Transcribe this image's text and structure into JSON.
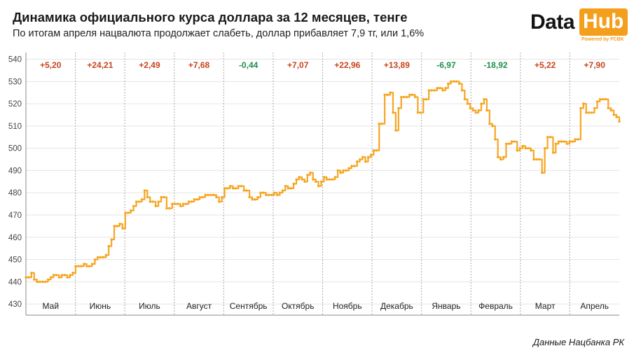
{
  "header": {
    "title": "Динамика официального курса доллара за 12 месяцев, тенге",
    "subtitle": "По итогам апреля нацвалюта продолжает слабеть, доллар прибавляет 7,9 тг, или 1,6%"
  },
  "logo": {
    "word1": "Data",
    "word2": "Hub",
    "tagline": "Powered by FCBK"
  },
  "source": "Данные Нацбанка РК",
  "colors": {
    "line": "#f5a623",
    "positive": "#c8441b",
    "negative": "#1f8f4e",
    "grid": "#e5e5e5",
    "separator": "#aaaaaa"
  },
  "chart_data": {
    "type": "line",
    "title": "Динамика официального курса доллара за 12 месяцев, тенге",
    "xlabel": "",
    "ylabel": "",
    "ylim": [
      425,
      543
    ],
    "yticks": [
      430,
      440,
      450,
      460,
      470,
      480,
      490,
      500,
      510,
      520,
      530,
      540
    ],
    "grid": "horizontal",
    "months": [
      "Май",
      "Июнь",
      "Июль",
      "Август",
      "Сентябрь",
      "Октябрь",
      "Ноябрь",
      "Декабрь",
      "Январь",
      "Февраль",
      "Март",
      "Апрель"
    ],
    "month_changes": [
      "+5,20",
      "+24,21",
      "+2,49",
      "+7,68",
      "-0,44",
      "+7,07",
      "+22,96",
      "+13,89",
      "-6,97",
      "-18,92",
      "+5,22",
      "+7,90"
    ],
    "series": [
      {
        "values": [
          442,
          442,
          444,
          441,
          440,
          440,
          440,
          440,
          441,
          442,
          443,
          443,
          442,
          443,
          443,
          442,
          443,
          444,
          447,
          447,
          447,
          448,
          447,
          447,
          448,
          450,
          451,
          451,
          451,
          452,
          456,
          459,
          465,
          465,
          466,
          464,
          471,
          471,
          472,
          474,
          476,
          476,
          477,
          481,
          478,
          476,
          476,
          474,
          476,
          478,
          478,
          473,
          473,
          475,
          475,
          475,
          474,
          475,
          475,
          476,
          476,
          477,
          477,
          478,
          478,
          479,
          479,
          479,
          479,
          478,
          476,
          478,
          482,
          482,
          483,
          482,
          482,
          483,
          483,
          481,
          481,
          478,
          477,
          477,
          478,
          480,
          480,
          479,
          479,
          479,
          480,
          479,
          480,
          481,
          483,
          482,
          482,
          484,
          486,
          487,
          486,
          485,
          488,
          489,
          486,
          485,
          483,
          485,
          487,
          486,
          486,
          486,
          487,
          490,
          489,
          490,
          490,
          491,
          492,
          492,
          494,
          495,
          496,
          494,
          496,
          497,
          499,
          499,
          511,
          511,
          524,
          524,
          525,
          516,
          508,
          518,
          523,
          523,
          523,
          524,
          524,
          523,
          516,
          516,
          522,
          522,
          526,
          526,
          526,
          527,
          527,
          526,
          527,
          529,
          530,
          530,
          530,
          529,
          526,
          522,
          520,
          518,
          517,
          516,
          517,
          520,
          522,
          517,
          511,
          510,
          504,
          496,
          495,
          496,
          502,
          502,
          503,
          503,
          499,
          500,
          501,
          500,
          500,
          499,
          495,
          495,
          495,
          489,
          500,
          505,
          505,
          498,
          502,
          503,
          503,
          503,
          502,
          503,
          503,
          504,
          504,
          518,
          520,
          516,
          516,
          516,
          518,
          521,
          522,
          522,
          522,
          518,
          517,
          515,
          514,
          512
        ]
      }
    ]
  }
}
